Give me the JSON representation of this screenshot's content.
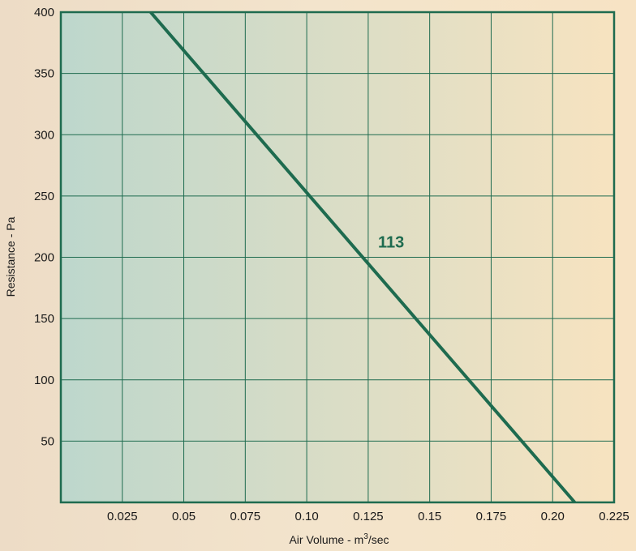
{
  "chart_data": {
    "type": "line",
    "title": "",
    "xlabel": "Air Volume - m",
    "xlabel_superscript": "3",
    "xlabel_suffix": "/sec",
    "ylabel": "Resistance - Pa",
    "xlim": [
      0,
      0.225
    ],
    "ylim": [
      0,
      400
    ],
    "x_ticks": [
      0.025,
      0.05,
      0.075,
      0.1,
      0.125,
      0.15,
      0.175,
      0.2,
      0.225
    ],
    "x_tick_labels": [
      "0.025",
      "0.05",
      "0.075",
      "0.10",
      "0.125",
      "0.15",
      "0.175",
      "0.20",
      "0.225"
    ],
    "y_ticks": [
      50,
      100,
      150,
      200,
      250,
      300,
      350,
      400
    ],
    "y_tick_labels": [
      "50",
      "100",
      "150",
      "200",
      "250",
      "300",
      "350",
      "400"
    ],
    "grid": true,
    "series": [
      {
        "name": "113",
        "x": [
          0.0365,
          0.209
        ],
        "y": [
          400,
          0
        ],
        "color": "#1e6b4f"
      }
    ],
    "annotations": [
      {
        "text": "113",
        "x": 0.129,
        "y": 208
      }
    ],
    "colors": {
      "frame": "#1e6b4f",
      "grid": "#1e6b4f",
      "line": "#1e6b4f",
      "plot_left": "#bdd7cc",
      "plot_right": "#f7e3c0"
    }
  }
}
